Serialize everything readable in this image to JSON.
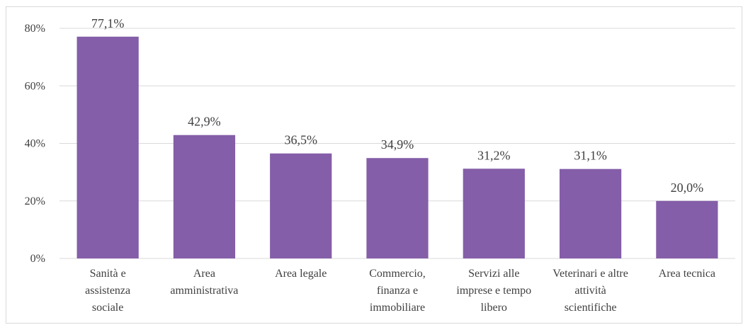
{
  "chart_data": {
    "type": "bar",
    "categories": [
      "Sanità e assistenza sociale",
      "Area amministrativa",
      "Area legale",
      "Commercio, finanza e immobiliare",
      "Servizi alle imprese e tempo libero",
      "Veterinari e altre attività scientifiche",
      "Area tecnica"
    ],
    "values": [
      77.1,
      42.9,
      36.5,
      34.9,
      31.2,
      31.1,
      20.0
    ],
    "value_labels": [
      "77,1%",
      "42,9%",
      "36,5%",
      "34,9%",
      "31,2%",
      "31,1%",
      "20,0%"
    ],
    "color": "#845ea8",
    "ylim": [
      0,
      80
    ],
    "yticks": [
      {
        "value": 0,
        "label": "0%"
      },
      {
        "value": 20,
        "label": "20%"
      },
      {
        "value": 40,
        "label": "40%"
      },
      {
        "value": 60,
        "label": "60%"
      },
      {
        "value": 80,
        "label": "80%"
      }
    ],
    "grid": true
  }
}
